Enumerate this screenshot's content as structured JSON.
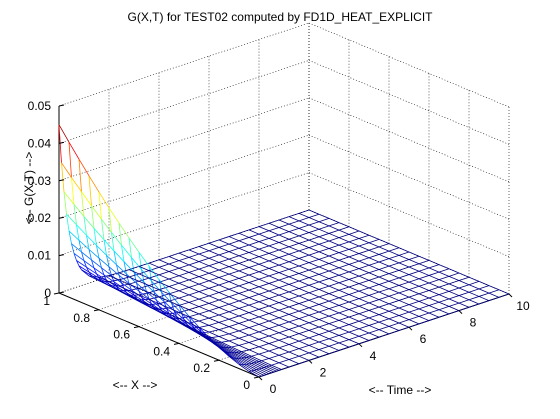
{
  "chart_data": {
    "type": "surface",
    "title": "G(X,T) for TEST02 computed by FD1D_HEAT_EXPLICIT",
    "xlabel": "<-- Time -->",
    "ylabel": "<-- X -->",
    "zlabel": "<--  G(X,T) -->",
    "time_range": [
      0,
      10
    ],
    "x_range": [
      0,
      1
    ],
    "z_range": [
      0,
      0.05
    ],
    "time_ticks": [
      "0",
      "2",
      "4",
      "6",
      "8",
      "10"
    ],
    "x_ticks": [
      "0",
      "0.2",
      "0.4",
      "0.6",
      "0.8",
      "1"
    ],
    "z_ticks": [
      "0",
      "0.01",
      "0.02",
      "0.03",
      "0.04",
      "0.05"
    ],
    "grid": true,
    "colormap": "jet",
    "surface_description": "mesh surface: G equals about 0.045 at X=1, T=0 and decays to near 0 by T=1; surface essentially 0 for T greater than 1",
    "peak_value": 0.045
  }
}
